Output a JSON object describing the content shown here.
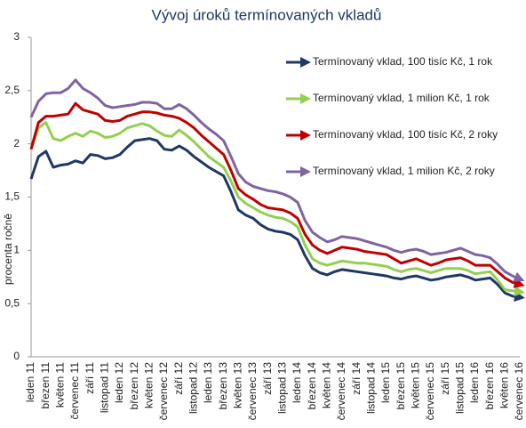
{
  "chart_data": {
    "type": "line",
    "title": "Vývoj úroků termínovaných vkladů",
    "y_label": "procenta ročně",
    "categories": [
      "leden 11",
      null,
      "březen 11",
      null,
      "květen 11",
      null,
      "červenec 11",
      null,
      "září 11",
      null,
      "listopad 11",
      null,
      "leden 12",
      null,
      "březen 12",
      null,
      "květen 12",
      null,
      "červenec 12",
      null,
      "září 12",
      null,
      "listopad 12",
      null,
      "leden 13",
      null,
      "březen 13",
      null,
      "květen 13",
      null,
      "červenec 13",
      null,
      "září 13",
      null,
      "listopad 13",
      null,
      "leden 14",
      null,
      "březen 14",
      null,
      "květen 14",
      null,
      "červenec 14",
      null,
      "září 14",
      null,
      "listopad 14",
      null,
      "leden 15",
      null,
      "březen 15",
      null,
      "květen 15",
      null,
      "červenec 15",
      null,
      "září 15",
      null,
      "listopad 15",
      null,
      "leden 16",
      null,
      "březen 16",
      null,
      "květen 16",
      null,
      "červenec 16"
    ],
    "series": [
      {
        "name": "Termínovaný vklad, 100 tisíc Kč, 1 rok",
        "color": "#1f3864",
        "values": [
          1.67,
          1.88,
          1.93,
          1.78,
          1.8,
          1.81,
          1.84,
          1.82,
          1.9,
          1.89,
          1.86,
          1.87,
          1.9,
          1.97,
          2.03,
          2.04,
          2.05,
          2.03,
          1.95,
          1.94,
          1.98,
          1.94,
          1.88,
          1.83,
          1.78,
          1.74,
          1.7,
          1.55,
          1.38,
          1.33,
          1.3,
          1.24,
          1.2,
          1.18,
          1.17,
          1.15,
          1.1,
          0.95,
          0.83,
          0.79,
          0.77,
          0.8,
          0.82,
          0.81,
          0.8,
          0.79,
          0.78,
          0.77,
          0.76,
          0.74,
          0.73,
          0.75,
          0.76,
          0.74,
          0.72,
          0.73,
          0.75,
          0.76,
          0.77,
          0.75,
          0.72,
          0.73,
          0.74,
          0.68,
          0.6,
          0.57,
          0.56
        ]
      },
      {
        "name": "Termínovaný vklad, 1 milion Kč, 1 rok",
        "color": "#92d050",
        "values": [
          1.95,
          2.15,
          2.2,
          2.05,
          2.03,
          2.07,
          2.1,
          2.07,
          2.12,
          2.1,
          2.06,
          2.07,
          2.1,
          2.15,
          2.17,
          2.19,
          2.17,
          2.12,
          2.08,
          2.07,
          2.13,
          2.08,
          2.02,
          1.95,
          1.88,
          1.83,
          1.78,
          1.65,
          1.5,
          1.44,
          1.4,
          1.36,
          1.33,
          1.31,
          1.3,
          1.27,
          1.22,
          1.05,
          0.92,
          0.88,
          0.86,
          0.88,
          0.9,
          0.89,
          0.88,
          0.88,
          0.87,
          0.86,
          0.85,
          0.82,
          0.8,
          0.82,
          0.83,
          0.81,
          0.79,
          0.81,
          0.83,
          0.83,
          0.83,
          0.81,
          0.78,
          0.79,
          0.8,
          0.72,
          0.63,
          0.62,
          0.61
        ]
      },
      {
        "name": "Termínovaný vklad, 100 tisíc Kč, 2 roky",
        "color": "#c00000",
        "values": [
          1.95,
          2.2,
          2.26,
          2.26,
          2.27,
          2.28,
          2.38,
          2.32,
          2.3,
          2.28,
          2.22,
          2.21,
          2.22,
          2.26,
          2.28,
          2.3,
          2.3,
          2.29,
          2.27,
          2.26,
          2.24,
          2.2,
          2.15,
          2.08,
          2.02,
          1.96,
          1.9,
          1.75,
          1.58,
          1.52,
          1.48,
          1.43,
          1.4,
          1.39,
          1.38,
          1.35,
          1.3,
          1.15,
          1.05,
          1.0,
          0.97,
          1.0,
          1.03,
          1.02,
          1.01,
          0.99,
          0.98,
          0.97,
          0.96,
          0.92,
          0.88,
          0.9,
          0.92,
          0.89,
          0.86,
          0.88,
          0.91,
          0.92,
          0.93,
          0.9,
          0.86,
          0.86,
          0.86,
          0.8,
          0.74,
          0.7,
          0.68
        ]
      },
      {
        "name": "Termínovaný vklad, 1 milion Kč, 2 roky",
        "color": "#8064a2",
        "values": [
          2.25,
          2.4,
          2.47,
          2.48,
          2.48,
          2.52,
          2.6,
          2.52,
          2.48,
          2.43,
          2.36,
          2.34,
          2.35,
          2.36,
          2.37,
          2.39,
          2.39,
          2.38,
          2.33,
          2.33,
          2.37,
          2.33,
          2.27,
          2.2,
          2.14,
          2.09,
          2.03,
          1.88,
          1.72,
          1.64,
          1.6,
          1.58,
          1.56,
          1.55,
          1.53,
          1.5,
          1.45,
          1.28,
          1.17,
          1.12,
          1.08,
          1.1,
          1.13,
          1.12,
          1.11,
          1.09,
          1.07,
          1.05,
          1.03,
          1.0,
          0.98,
          1.0,
          1.01,
          0.99,
          0.96,
          0.97,
          0.98,
          1.0,
          1.02,
          0.99,
          0.96,
          0.95,
          0.93,
          0.87,
          0.8,
          0.76,
          0.73
        ]
      }
    ],
    "ylim": [
      0,
      3
    ],
    "yticks": [
      0,
      {
        "value": 0.5,
        "label": "0,5"
      },
      1,
      {
        "value": 1.5,
        "label": "1,5"
      },
      2,
      {
        "value": 2.5,
        "label": "2,5"
      },
      3
    ],
    "grid": false,
    "legend": "upper right"
  }
}
